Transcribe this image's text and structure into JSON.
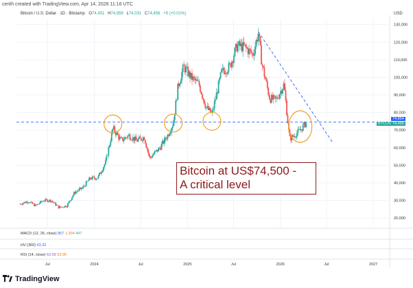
{
  "header": {
    "credit": "cerith created with TradingView.com, Apr 14, 2026 11:16 UTC",
    "symbol": "Bitcoin / U.S. Dollar · 1D · Bitstamp",
    "o_label": "O",
    "o_value": "74,451",
    "h_label": "H",
    "h_value": "74,959",
    "l_label": "L",
    "l_value": "74,031",
    "c_label": "C",
    "c_value": "74,456",
    "change": "+5 (+0.01%)",
    "currency": "USD"
  },
  "price_tags": {
    "level": "74,854",
    "ticker": "BTCUSD",
    "last": "74,456"
  },
  "callout": {
    "line1": "Bitcoin at US$74,500 -",
    "line2": "A critical level"
  },
  "indicators": {
    "macd": {
      "name": "MACD (12, 26, close)",
      "v1": "857",
      "v2": "1,304",
      "v3": "447"
    },
    "hv": {
      "name": "HV (360)",
      "v1": "43.32"
    },
    "rsi": {
      "name": "RSI (14, close)",
      "v1": "62.09",
      "v2": "53.90"
    }
  },
  "footer": {
    "brand": "TradingView"
  },
  "colors": {
    "up": "#26a69a",
    "down": "#ef5350",
    "level_line": "#2962ff",
    "circle": "#f0a020",
    "callout": "#8b1a1a"
  },
  "chart_data": {
    "type": "line",
    "title": "",
    "xlabel": "",
    "ylabel": "USD",
    "y_ticks": [
      "130,000",
      "120,000",
      "110,000",
      "100,000",
      "90,000",
      "80,000",
      "70,000",
      "60,000",
      "50,000",
      "40,000",
      "30,000",
      "20,000"
    ],
    "ylim": [
      15000,
      133000
    ],
    "x_ticks": [
      "Jul",
      "2024",
      "Jul",
      "2025",
      "Jul",
      "2026",
      "Jul",
      "2027"
    ],
    "x_tick_dates": [
      "2023-07-01",
      "2024-01-01",
      "2024-07-01",
      "2025-01-01",
      "2025-07-01",
      "2026-01-01",
      "2026-07-01",
      "2027-01-01"
    ],
    "xlim": [
      "2023-03-01",
      "2027-03-01"
    ],
    "horizontal_level": 74500,
    "trendline": {
      "x": [
        "2025-10-06",
        "2026-07-25"
      ],
      "y": [
        126000,
        63000
      ]
    },
    "circled_points": [
      {
        "x": "2024-03-14",
        "y": 73500
      },
      {
        "x": "2024-11-06",
        "y": 74000
      },
      {
        "x": "2025-04-07",
        "y": 75000
      },
      {
        "x": "2026-03-20",
        "y": 72000
      }
    ],
    "series": [
      {
        "x": [
          "2023-03-15",
          "2023-04-15",
          "2023-05-15",
          "2023-06-15",
          "2023-07-15",
          "2023-08-15",
          "2023-09-15",
          "2023-10-15",
          "2023-11-15",
          "2023-12-15",
          "2024-01-15",
          "2024-02-15",
          "2024-03-14",
          "2024-04-15",
          "2024-05-15",
          "2024-06-15",
          "2024-07-15",
          "2024-08-05",
          "2024-09-15",
          "2024-10-15",
          "2024-11-06",
          "2024-11-25",
          "2024-12-17",
          "2025-01-15",
          "2025-02-15",
          "2025-03-15",
          "2025-04-07",
          "2025-05-15",
          "2025-06-15",
          "2025-07-15",
          "2025-08-15",
          "2025-09-15",
          "2025-10-06",
          "2025-10-20",
          "2025-11-20",
          "2025-12-15",
          "2026-01-15",
          "2026-02-06",
          "2026-02-25",
          "2026-03-20",
          "2026-04-14"
        ],
        "y": [
          28000,
          29500,
          27000,
          30000,
          30000,
          26000,
          27000,
          34500,
          37000,
          42500,
          43000,
          52000,
          71000,
          64000,
          67000,
          64000,
          66000,
          54000,
          60000,
          67000,
          74000,
          95000,
          106000,
          100000,
          96000,
          83000,
          79000,
          103000,
          106000,
          118000,
          117000,
          113000,
          125000,
          108000,
          88000,
          87000,
          96000,
          65000,
          67000,
          70000,
          74456
        ]
      }
    ]
  }
}
